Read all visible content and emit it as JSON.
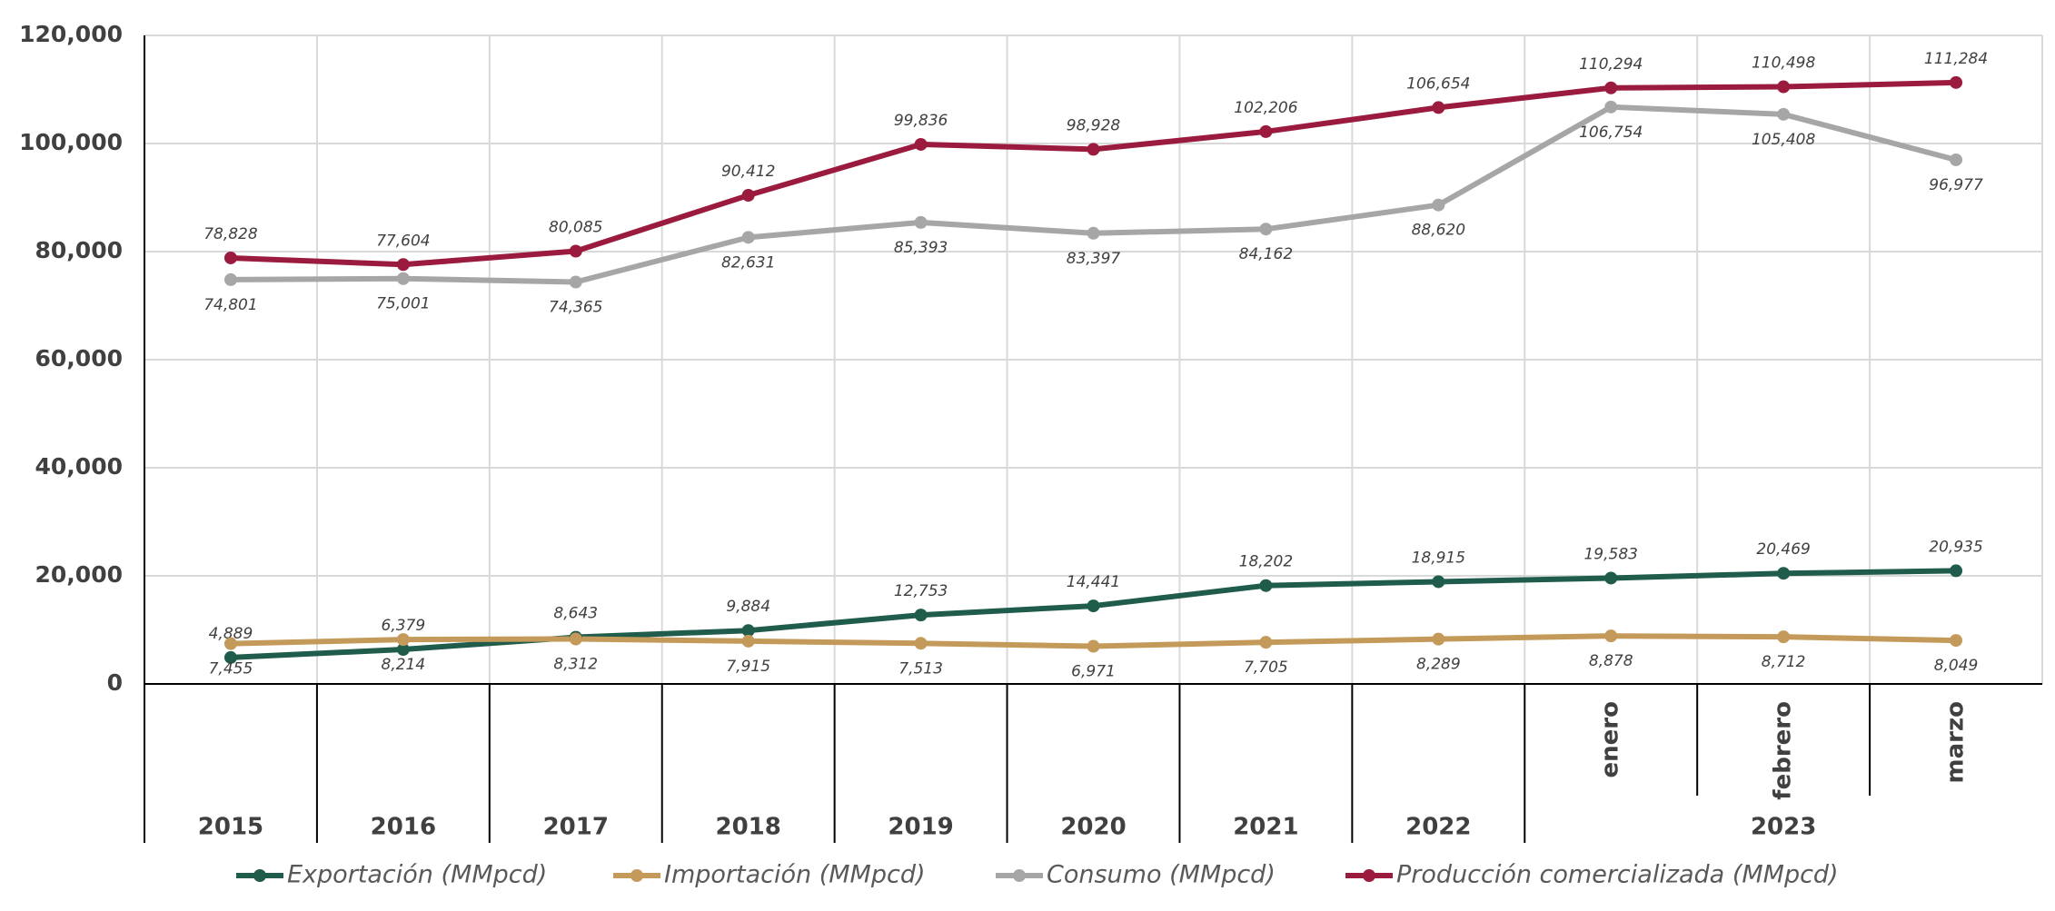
{
  "chart_data": {
    "type": "line",
    "categories": [
      "2015",
      "2016",
      "2017",
      "2018",
      "2019",
      "2020",
      "2021",
      "2022",
      "enero",
      "febrero",
      "marzo"
    ],
    "category_groups": [
      {
        "label": "2023",
        "span": 3
      }
    ],
    "ylim": [
      0,
      120000
    ],
    "yticks": [
      0,
      {
        "value": 20000,
        "label": "20,000"
      },
      {
        "value": 40000,
        "label": "40,000"
      },
      {
        "value": 60000,
        "label": "60,000"
      },
      {
        "value": 80000,
        "label": "80,000"
      },
      {
        "value": 100000,
        "label": "100,000"
      },
      {
        "value": 120000,
        "label": "120,000"
      }
    ],
    "grid": true,
    "legend": "bottom",
    "series": [
      {
        "name": "Exportación (MMpcd)",
        "color": "#1f5c4b",
        "values": [
          4889,
          6379,
          8643,
          9884,
          12753,
          14441,
          18202,
          18915,
          19583,
          20469,
          20935
        ],
        "value_labels": [
          "4,889",
          "6,379",
          "8,643",
          "9,884",
          "12,753",
          "14,441",
          "18,202",
          "18,915",
          "19,583",
          "20,469",
          "20,935"
        ]
      },
      {
        "name": "Importación (MMpcd)",
        "color": "#c49a5a",
        "values": [
          7455,
          8214,
          8312,
          7915,
          7513,
          6971,
          7705,
          8289,
          8878,
          8712,
          8049
        ],
        "value_labels": [
          "7,455",
          "8,214",
          "8,312",
          "7,915",
          "7,513",
          "6,971",
          "7,705",
          "8,289",
          "8,878",
          "8,712",
          "8,049"
        ]
      },
      {
        "name": "Consumo (MMpcd)",
        "color": "#a6a6a6",
        "values": [
          74801,
          75001,
          74365,
          82631,
          85393,
          83397,
          84162,
          88620,
          106754,
          105408,
          96977
        ],
        "value_labels": [
          "74,801",
          "75,001",
          "74,365",
          "82,631",
          "85,393",
          "83,397",
          "84,162",
          "88,620",
          "106,754",
          "105,408",
          "96,977"
        ]
      },
      {
        "name": "Producción comercializada (MMpcd)",
        "color": "#9b1b3e",
        "values": [
          78828,
          77604,
          80085,
          90412,
          99836,
          98928,
          102206,
          106654,
          110294,
          110498,
          111284
        ],
        "value_labels": [
          "78,828",
          "77,604",
          "80,085",
          "90,412",
          "99,836",
          "98,928",
          "102,206",
          "106,654",
          "110,294",
          "110,498",
          "111,284"
        ]
      }
    ]
  }
}
